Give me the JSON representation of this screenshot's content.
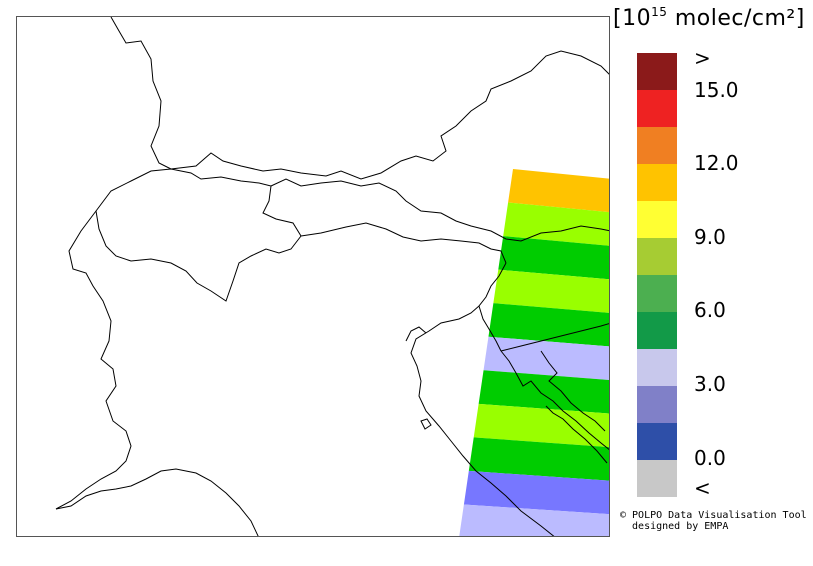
{
  "legend": {
    "units_prefix": "[10",
    "units_exponent": "15",
    "units_suffix": " molec/cm²]",
    "swatch_colors": [
      "#8b1a1a",
      "#ee2222",
      "#f07f22",
      "#ffc300",
      "#ffff33",
      "#a6cc33",
      "#4caf50",
      "#129a48",
      "#c8c8ec",
      "#8080c8",
      "#2e4fa8",
      "#c8c8c8"
    ],
    "tick_labels": [
      ">",
      "15.0",
      "12.0",
      "9.0",
      "6.0",
      "3.0",
      "0.0",
      "<"
    ]
  },
  "credit": {
    "line1": "© POLPO Data Visualisation Tool",
    "line2": "  designed by EMPA"
  },
  "swath": {
    "stripe_colors": [
      "#ffc300",
      "#99ff00",
      "#00cc00",
      "#99ff00",
      "#00cc00",
      "#bbbbff",
      "#00cc00",
      "#99ff00",
      "#00cc00",
      "#7777ff",
      "#bbbbff"
    ]
  }
}
